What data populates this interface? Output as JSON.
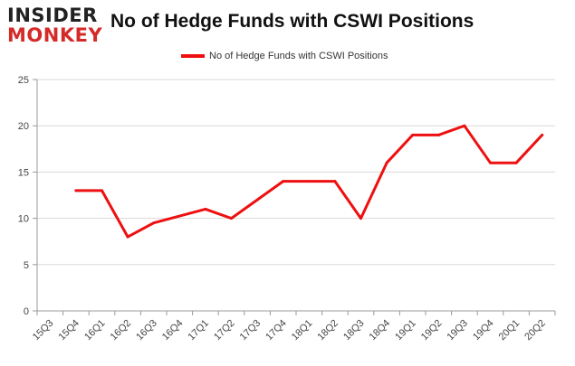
{
  "logo": {
    "line1": "INSIDER",
    "line2": "MONKEY"
  },
  "colors": {
    "series": "#ee1010",
    "grid": "#d9d9d9",
    "axis": "#999999",
    "brand_red": "#d42a28"
  },
  "chart_data": {
    "type": "line",
    "title": "No of Hedge Funds with CSWI Positions",
    "xlabel": "",
    "ylabel": "",
    "categories": [
      "15Q3",
      "15Q4",
      "16Q1",
      "16Q2",
      "16Q3",
      "16Q4",
      "17Q1",
      "17Q2",
      "17Q3",
      "17Q4",
      "18Q1",
      "18Q2",
      "18Q3",
      "18Q4",
      "19Q1",
      "19Q2",
      "19Q3",
      "19Q4",
      "20Q1",
      "20Q2"
    ],
    "series": [
      {
        "name": "No of Hedge Funds with CSWI Positions",
        "values": [
          null,
          13,
          13,
          8,
          9.5,
          null,
          11,
          10,
          null,
          14,
          14,
          14,
          10,
          16,
          19,
          19,
          20,
          16,
          16,
          19
        ]
      }
    ],
    "ylim": [
      0,
      25
    ],
    "yticks": [
      0,
      5,
      10,
      15,
      20,
      25
    ],
    "grid": true,
    "legend_position": "top-center"
  }
}
